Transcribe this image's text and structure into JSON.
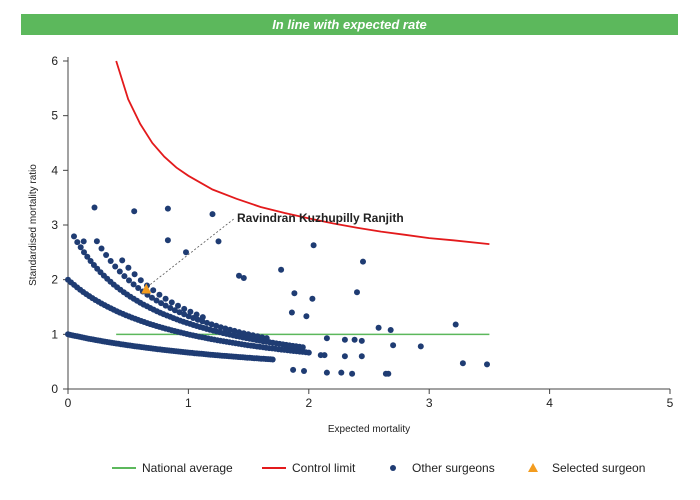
{
  "banner": {
    "text": "In line with expected rate",
    "color": "#5cb85c"
  },
  "chart_data": {
    "type": "scatter",
    "xlabel": "Expected mortality",
    "ylabel": "Standardised mortality ratio",
    "xlim": [
      0,
      5
    ],
    "ylim": [
      0,
      6
    ],
    "x_ticks": [
      "0",
      "1",
      "2",
      "3",
      "4",
      "5"
    ],
    "y_ticks": [
      "0",
      "1",
      "2",
      "3",
      "4",
      "5",
      "6"
    ],
    "grid": false,
    "legend_position": "bottom",
    "legend": [
      {
        "label": "National average",
        "kind": "line",
        "color": "#5cb85c"
      },
      {
        "label": "Control limit",
        "kind": "line",
        "color": "#e31a1c"
      },
      {
        "label": "Other surgeons",
        "kind": "dot",
        "color": "#1f3c73"
      },
      {
        "label": "Selected surgeon",
        "kind": "triangle",
        "color": "#f39c1f"
      }
    ],
    "national_average": {
      "y": 1,
      "x_range": [
        0.4,
        3.5
      ]
    },
    "control_limit": {
      "points": [
        [
          0.4,
          6.0
        ],
        [
          0.5,
          5.3
        ],
        [
          0.6,
          4.85
        ],
        [
          0.7,
          4.5
        ],
        [
          0.8,
          4.25
        ],
        [
          0.9,
          4.05
        ],
        [
          1.0,
          3.9
        ],
        [
          1.2,
          3.65
        ],
        [
          1.4,
          3.48
        ],
        [
          1.6,
          3.33
        ],
        [
          1.8,
          3.22
        ],
        [
          2.0,
          3.12
        ],
        [
          2.2,
          3.03
        ],
        [
          2.4,
          2.95
        ],
        [
          2.6,
          2.88
        ],
        [
          2.8,
          2.82
        ],
        [
          3.0,
          2.76
        ],
        [
          3.2,
          2.72
        ],
        [
          3.5,
          2.65
        ]
      ]
    },
    "other_surgeons": {
      "curves": [
        {
          "k": 1,
          "x_range": [
            0.0,
            1.7
          ],
          "count": 90
        },
        {
          "k": 2,
          "x_range": [
            0.0,
            2.0
          ],
          "count": 80
        },
        {
          "k": 3,
          "x_range": [
            0.05,
            1.95
          ],
          "count": 70
        },
        {
          "k": 4,
          "x_range": [
            0.24,
            1.65
          ],
          "count": 38
        },
        {
          "k": 5,
          "x_range": [
            0.45,
            1.12
          ],
          "count": 14
        }
      ],
      "scatter": [
        [
          0.22,
          3.32
        ],
        [
          0.55,
          3.25
        ],
        [
          0.83,
          3.3
        ],
        [
          1.2,
          3.2
        ],
        [
          0.83,
          2.72
        ],
        [
          0.98,
          2.5
        ],
        [
          1.25,
          2.7
        ],
        [
          0.13,
          2.7
        ],
        [
          1.42,
          2.07
        ],
        [
          1.46,
          2.03
        ],
        [
          1.77,
          2.18
        ],
        [
          2.04,
          2.63
        ],
        [
          2.45,
          2.33
        ],
        [
          1.88,
          1.75
        ],
        [
          2.03,
          1.65
        ],
        [
          2.4,
          1.77
        ],
        [
          1.98,
          1.33
        ],
        [
          1.86,
          1.4
        ],
        [
          2.58,
          1.12
        ],
        [
          2.68,
          1.08
        ],
        [
          3.22,
          1.18
        ],
        [
          2.15,
          0.93
        ],
        [
          2.3,
          0.9
        ],
        [
          2.38,
          0.9
        ],
        [
          2.44,
          0.88
        ],
        [
          2.7,
          0.8
        ],
        [
          2.93,
          0.78
        ],
        [
          2.1,
          0.62
        ],
        [
          2.13,
          0.62
        ],
        [
          2.3,
          0.6
        ],
        [
          2.44,
          0.6
        ],
        [
          1.87,
          0.35
        ],
        [
          1.96,
          0.33
        ],
        [
          2.15,
          0.3
        ],
        [
          2.27,
          0.3
        ],
        [
          2.36,
          0.28
        ],
        [
          2.64,
          0.28
        ],
        [
          2.66,
          0.28
        ],
        [
          3.28,
          0.47
        ],
        [
          3.48,
          0.45
        ]
      ]
    },
    "selected_surgeon": {
      "name": "Ravindran Kuzhupilly Ranjith",
      "x": 0.65,
      "y": 1.82
    }
  }
}
